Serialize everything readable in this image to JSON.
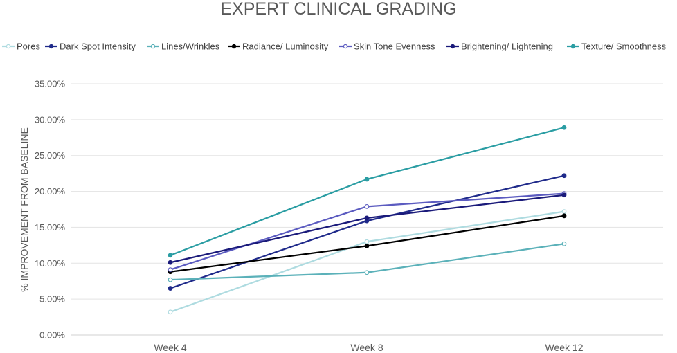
{
  "chart_data": {
    "type": "line",
    "title": "EXPERT CLINICAL GRADING",
    "xlabel": "",
    "ylabel": "% IMPROVEMENT FROM BASELINE",
    "categories": [
      "Week 4",
      "Week 8",
      "Week 12"
    ],
    "ylim": [
      0,
      35
    ],
    "yticks": [
      "0.00%",
      "5.00%",
      "10.00%",
      "15.00%",
      "20.00%",
      "25.00%",
      "30.00%",
      "35.00%"
    ],
    "grid": true,
    "legend_position": "top",
    "series": [
      {
        "name": "Pores",
        "values": [
          3.2,
          13.0,
          17.2
        ],
        "color": "#aedbe0",
        "marker": "open"
      },
      {
        "name": "Dark Spot Intensity",
        "values": [
          6.5,
          15.9,
          22.2
        ],
        "color": "#1f2a8a",
        "marker": "filled"
      },
      {
        "name": "Lines/Wrinkles",
        "values": [
          7.7,
          8.7,
          12.7
        ],
        "color": "#5bb1b9",
        "marker": "open"
      },
      {
        "name": "Radiance/ Luminosity",
        "values": [
          8.8,
          12.4,
          16.6
        ],
        "color": "#000000",
        "marker": "filled"
      },
      {
        "name": "Skin Tone Evenness",
        "values": [
          9.1,
          17.9,
          19.7
        ],
        "color": "#5b5bc0",
        "marker": "open"
      },
      {
        "name": "Brightening/ Lightening",
        "values": [
          10.1,
          16.3,
          19.5
        ],
        "color": "#1a1a7a",
        "marker": "filled"
      },
      {
        "name": "Texture/ Smoothness",
        "values": [
          11.1,
          21.7,
          28.9
        ],
        "color": "#2a9da3",
        "marker": "filled"
      }
    ]
  }
}
